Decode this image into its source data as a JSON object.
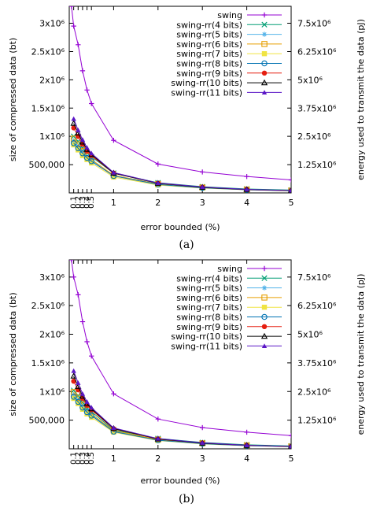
{
  "figures": [
    {
      "caption": "(a)",
      "chart_data": {
        "type": "line",
        "xlabel": "error bounded (%)",
        "ylabel": "size of compressed data (bt)",
        "y2label": "energy used to transmit the data (pJ)",
        "xlim": [
          0,
          5
        ],
        "ylim": [
          0,
          3300000
        ],
        "x_ticks": [
          "0.1",
          "0.2",
          "0.3",
          "0.4",
          "0.5",
          "1",
          "2",
          "3",
          "4",
          "5"
        ],
        "x_tick_values": [
          0.1,
          0.2,
          0.3,
          0.4,
          0.5,
          1,
          2,
          3,
          4,
          5
        ],
        "y_ticks": [
          "500,000",
          "1x10⁶",
          "1.5x10⁶",
          "2x10⁶",
          "2.5x10⁶",
          "3x10⁶"
        ],
        "y_tick_values": [
          500000,
          1000000,
          1500000,
          2000000,
          2500000,
          3000000
        ],
        "y2_ticks": [
          "1.25x10⁶",
          "2.5x10⁶",
          "3.75x10⁶",
          "5x10⁶",
          "6.25x10⁶",
          "7.5x10⁶"
        ],
        "y2_tick_values": [
          500000,
          1000000,
          1500000,
          2000000,
          2500000,
          3000000
        ],
        "grid": false,
        "legend": "top-right",
        "x": [
          0.05,
          0.1,
          0.2,
          0.3,
          0.4,
          0.5,
          1,
          2,
          3,
          4,
          5
        ],
        "series": [
          {
            "name": "swing",
            "color": "#9400d3",
            "marker": "plus",
            "values": [
              3300000,
              2950000,
              2620000,
              2160000,
              1820000,
              1580000,
              930000,
              510000,
              370000,
              290000,
              230000
            ]
          },
          {
            "name": "swing-rr(4 bits)",
            "color": "#009e73",
            "marker": "x",
            "values": [
              null,
              1000000,
              910000,
              790000,
              710000,
              640000,
              350000,
              180000,
              110000,
              70000,
              50000
            ]
          },
          {
            "name": "swing-rr(5 bits)",
            "color": "#56b4e9",
            "marker": "star",
            "values": [
              null,
              920000,
              830000,
              720000,
              640000,
              580000,
              310000,
              160000,
              100000,
              60000,
              40000
            ]
          },
          {
            "name": "swing-rr(6 bits)",
            "color": "#e69f00",
            "marker": "square-open",
            "values": [
              null,
              960000,
              860000,
              740000,
              650000,
              590000,
              310000,
              155000,
              95000,
              60000,
              40000
            ]
          },
          {
            "name": "swing-rr(7 bits)",
            "color": "#f0e442",
            "marker": "square",
            "values": [
              null,
              850000,
              760000,
              660000,
              590000,
              530000,
              280000,
              140000,
              85000,
              55000,
              35000
            ]
          },
          {
            "name": "swing-rr(8 bits)",
            "color": "#0072b2",
            "marker": "circle-open",
            "values": [
              null,
              880000,
              790000,
              700000,
              620000,
              560000,
              300000,
              150000,
              90000,
              55000,
              38000
            ]
          },
          {
            "name": "swing-rr(9 bits)",
            "color": "#e51e10",
            "marker": "circle",
            "values": [
              null,
              1150000,
              1000000,
              860000,
              740000,
              660000,
              350000,
              170000,
              100000,
              60000,
              40000
            ]
          },
          {
            "name": "swing-rr(10 bits)",
            "color": "#000000",
            "marker": "triangle-open",
            "values": [
              null,
              1230000,
              1060000,
              900000,
              770000,
              680000,
              350000,
              170000,
              100000,
              60000,
              40000
            ]
          },
          {
            "name": "swing-rr(11 bits)",
            "color": "#5b17c6",
            "marker": "triangle",
            "values": [
              null,
              1310000,
              1110000,
              940000,
              800000,
              700000,
              360000,
              175000,
              105000,
              62000,
              42000
            ]
          }
        ]
      }
    },
    {
      "caption": "(b)",
      "chart_data": {
        "type": "line",
        "xlabel": "error bounded (%)",
        "ylabel": "size of compressed data (bt)",
        "y2label": "energy used to transmit the data (pJ)",
        "xlim": [
          0,
          5
        ],
        "ylim": [
          0,
          3300000
        ],
        "x_ticks": [
          "0.1",
          "0.2",
          "0.3",
          "0.4",
          "0.5",
          "1",
          "2",
          "3",
          "4",
          "5"
        ],
        "x_tick_values": [
          0.1,
          0.2,
          0.3,
          0.4,
          0.5,
          1,
          2,
          3,
          4,
          5
        ],
        "y_ticks": [
          "500,000",
          "1x10⁶",
          "1.5x10⁶",
          "2x10⁶",
          "2.5x10⁶",
          "3x10⁶"
        ],
        "y_tick_values": [
          500000,
          1000000,
          1500000,
          2000000,
          2500000,
          3000000
        ],
        "y2_ticks": [
          "1.25x10⁶",
          "2.5x10⁶",
          "3.75x10⁶",
          "5x10⁶",
          "6.25x10⁶",
          "7.5x10⁶"
        ],
        "y2_tick_values": [
          500000,
          1000000,
          1500000,
          2000000,
          2500000,
          3000000
        ],
        "grid": false,
        "legend": "top-right",
        "x": [
          0.05,
          0.1,
          0.2,
          0.3,
          0.4,
          0.5,
          1,
          2,
          3,
          4,
          5
        ],
        "series": [
          {
            "name": "swing",
            "color": "#9400d3",
            "marker": "plus",
            "values": [
              3300000,
              3000000,
              2690000,
              2220000,
              1870000,
              1620000,
              960000,
              520000,
              370000,
              290000,
              230000
            ]
          },
          {
            "name": "swing-rr(4 bits)",
            "color": "#009e73",
            "marker": "x",
            "values": [
              null,
              1020000,
              930000,
              810000,
              720000,
              650000,
              330000,
              180000,
              110000,
              70000,
              50000
            ]
          },
          {
            "name": "swing-rr(5 bits)",
            "color": "#56b4e9",
            "marker": "star",
            "values": [
              null,
              940000,
              850000,
              740000,
              660000,
              590000,
              310000,
              160000,
              100000,
              60000,
              40000
            ]
          },
          {
            "name": "swing-rr(6 bits)",
            "color": "#e69f00",
            "marker": "square-open",
            "values": [
              null,
              990000,
              890000,
              770000,
              680000,
              610000,
              320000,
              160000,
              95000,
              60000,
              40000
            ]
          },
          {
            "name": "swing-rr(7 bits)",
            "color": "#f0e442",
            "marker": "square",
            "values": [
              null,
              880000,
              790000,
              690000,
              610000,
              550000,
              290000,
              145000,
              85000,
              55000,
              35000
            ]
          },
          {
            "name": "swing-rr(8 bits)",
            "color": "#0072b2",
            "marker": "circle-open",
            "values": [
              null,
              910000,
              820000,
              720000,
              640000,
              580000,
              300000,
              150000,
              90000,
              55000,
              38000
            ]
          },
          {
            "name": "swing-rr(9 bits)",
            "color": "#e51e10",
            "marker": "circle",
            "values": [
              null,
              1180000,
              1030000,
              880000,
              760000,
              680000,
              350000,
              170000,
              100000,
              60000,
              40000
            ]
          },
          {
            "name": "swing-rr(10 bits)",
            "color": "#000000",
            "marker": "triangle-open",
            "values": [
              null,
              1270000,
              1090000,
              920000,
              790000,
              700000,
              355000,
              172000,
              100000,
              60000,
              40000
            ]
          },
          {
            "name": "swing-rr(11 bits)",
            "color": "#5b17c6",
            "marker": "triangle",
            "values": [
              null,
              1360000,
              1150000,
              960000,
              820000,
              720000,
              365000,
              178000,
              105000,
              62000,
              42000
            ]
          }
        ]
      }
    }
  ]
}
